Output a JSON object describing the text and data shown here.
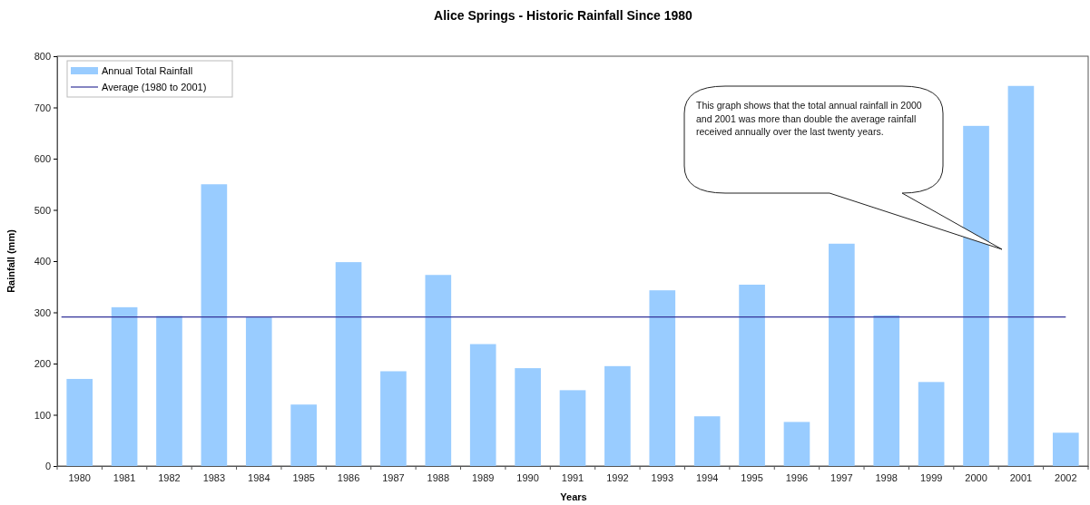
{
  "chart_data": {
    "type": "bar",
    "title": "Alice Springs - Historic Rainfall Since 1980",
    "xlabel": "Years",
    "ylabel": "Rainfall (mm)",
    "categories": [
      "1980",
      "1981",
      "1982",
      "1983",
      "1984",
      "1985",
      "1986",
      "1987",
      "1988",
      "1989",
      "1990",
      "1991",
      "1992",
      "1993",
      "1994",
      "1995",
      "1996",
      "1997",
      "1998",
      "1999",
      "2000",
      "2001",
      "2002"
    ],
    "series": [
      {
        "name": "Annual  Total Rainfall",
        "color": "#99ccff",
        "values": [
          170,
          310,
          293,
          550,
          290,
          120,
          398,
          185,
          373,
          238,
          191,
          148,
          195,
          343,
          97,
          354,
          86,
          434,
          294,
          164,
          664,
          742,
          65
        ]
      }
    ],
    "ylim": [
      0,
      800
    ],
    "yticks": [
      0,
      100,
      200,
      300,
      400,
      500,
      600,
      700,
      800
    ],
    "grid": false,
    "legend": "top left",
    "ref_lines": [
      {
        "axis": "y",
        "value": 291,
        "label": "Average (1980 to 2001)",
        "color": "#333399"
      }
    ],
    "annotations": [
      "This graph shows that the total annual rainfall in 2000 and 2001 was more than double the average rainfall received annually over the last twenty years."
    ]
  }
}
